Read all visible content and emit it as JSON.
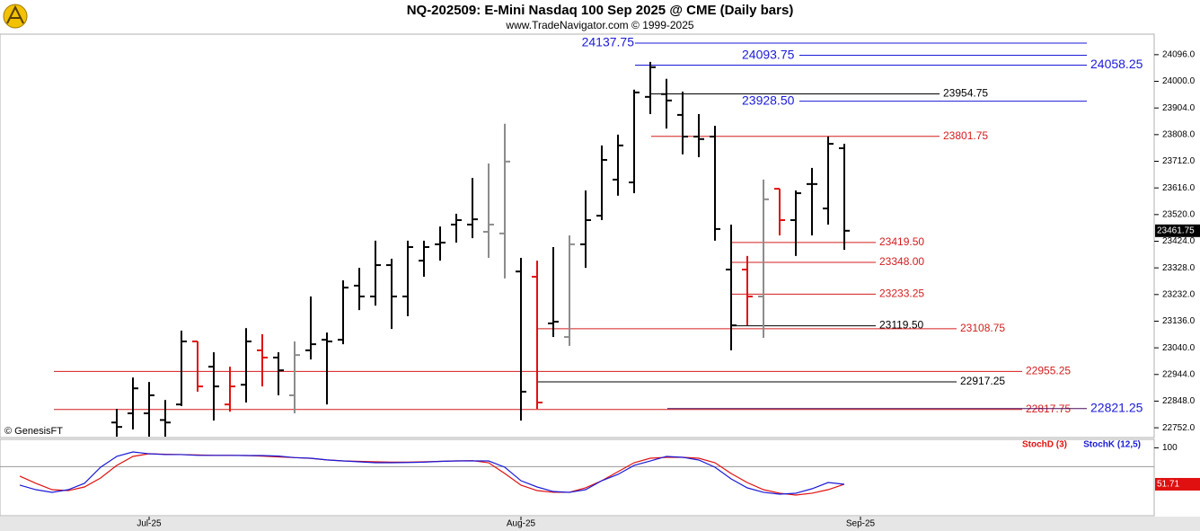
{
  "chart_data": {
    "type": "ohlc",
    "title": "NQ-202509:  E-Mini Nasdaq 100 Sep 2025 @ CME  (Daily bars)",
    "subtitle": "www.TradeNavigator.com © 1999-2025",
    "source": "© GenesisFT",
    "categories": [
      null,
      null,
      null,
      null,
      null,
      null,
      null,
      null,
      "Jul-25",
      null,
      null,
      null,
      null,
      null,
      null,
      null,
      null,
      null,
      null,
      null,
      null,
      null,
      null,
      null,
      null,
      null,
      null,
      null,
      null,
      null,
      null,
      "Aug-25",
      null,
      null,
      null,
      null,
      null,
      null,
      null,
      null,
      null,
      null,
      null,
      null,
      null,
      null,
      null,
      null,
      null,
      null,
      null,
      null,
      "Sep-25"
    ],
    "open": [
      null,
      null,
      null,
      null,
      null,
      null,
      22771,
      22804,
      22804,
      22780,
      22836,
      23063,
      22972,
      22836,
      22907,
      23031,
      23005,
      22869,
      23031,
      23069,
      23069,
      23264,
      23225,
      23338,
      23225,
      23354,
      23413,
      23484,
      23484,
      23458,
      23452,
      23315,
      23296,
      23128,
      23079,
      23413,
      23516,
      23646,
      23636,
      23944,
      23954,
      23879,
      23801,
      23801,
      23322,
      23322,
      23225,
      23613,
      23500,
      23630,
      23542,
      23759,
      null
    ],
    "high": [
      null,
      null,
      null,
      null,
      null,
      null,
      22820,
      22933,
      22917,
      22852,
      23102,
      23063,
      23024,
      22972,
      23111,
      23089,
      23024,
      23063,
      23225,
      23095,
      23283,
      23328,
      23426,
      23361,
      23426,
      23426,
      23477,
      23523,
      23652,
      23704,
      23847,
      23364,
      23354,
      23403,
      23445,
      23607,
      23769,
      23808,
      23970,
      24070,
      24009,
      23963,
      23882,
      23840,
      23484,
      23371,
      23646,
      23613,
      23607,
      23688,
      23801,
      23775,
      null
    ],
    "low": [
      null,
      null,
      null,
      null,
      null,
      null,
      22720,
      22746,
      22720,
      22720,
      22830,
      22882,
      22778,
      22810,
      22843,
      22901,
      22869,
      22804,
      22998,
      22836,
      23053,
      23176,
      23192,
      23108,
      23154,
      23296,
      23354,
      23419,
      23435,
      23364,
      23290,
      22778,
      22820,
      23079,
      23047,
      23328,
      23500,
      23588,
      23597,
      23882,
      23830,
      23737,
      23727,
      23426,
      23031,
      23121,
      23076,
      23445,
      23371,
      23445,
      23484,
      23393,
      null
    ],
    "close": [
      null,
      null,
      null,
      null,
      null,
      null,
      22755,
      22894,
      22869,
      22771,
      23063,
      22901,
      22901,
      22901,
      23063,
      23005,
      22959,
      23014,
      23053,
      23063,
      23257,
      23225,
      23338,
      23225,
      23403,
      23403,
      23419,
      23500,
      23503,
      23484,
      23711,
      22882,
      22843,
      23134,
      23413,
      23500,
      23717,
      23769,
      23960,
      24051,
      23931,
      23801,
      23792,
      23468,
      23121,
      23225,
      23575,
      23500,
      23597,
      23630,
      23775,
      23461.75,
      null
    ],
    "colors": [
      null,
      null,
      null,
      null,
      null,
      null,
      "#000000",
      "#000000",
      "#000000",
      "#000000",
      "#000000",
      "#e01010",
      "#000000",
      "#e01010",
      "#000000",
      "#e01010",
      "#000000",
      "#8c8c8c",
      "#000000",
      "#000000",
      "#000000",
      "#000000",
      "#000000",
      "#000000",
      "#000000",
      "#000000",
      "#000000",
      "#000000",
      "#000000",
      "#8c8c8c",
      "#8c8c8c",
      "#000000",
      "#e01010",
      "#000000",
      "#8c8c8c",
      "#000000",
      "#000000",
      "#000000",
      "#000000",
      "#000000",
      "#000000",
      "#000000",
      "#000000",
      "#000000",
      "#000000",
      "#e01010",
      "#8c8c8c",
      "#e01010",
      "#000000",
      "#000000",
      "#000000",
      "#000000",
      null
    ],
    "ylim": [
      22720,
      24170
    ],
    "yticks": [
      {
        "value": 24096,
        "label": "24096.0"
      },
      {
        "value": 24000,
        "label": "24000.0"
      },
      {
        "value": 23904,
        "label": "23904.0"
      },
      {
        "value": 23808,
        "label": "23808.0"
      },
      {
        "value": 23712,
        "label": "23712.0"
      },
      {
        "value": 23616,
        "label": "23616.0"
      },
      {
        "value": 23520,
        "label": "23520.0"
      },
      {
        "value": 23424,
        "label": "23424.0"
      },
      {
        "value": 23328,
        "label": "23328.0"
      },
      {
        "value": 23232,
        "label": "23232.0"
      },
      {
        "value": 23136,
        "label": "23136.0"
      },
      {
        "value": 23040,
        "label": "23040.0"
      },
      {
        "value": 22944,
        "label": "22944.0"
      },
      {
        "value": 22848,
        "label": "22848.0"
      },
      {
        "value": 22752,
        "label": "22752.0"
      }
    ],
    "levels": [
      {
        "value": 24137.75,
        "color": "#1a1ad8"
      },
      {
        "value": 24093.75,
        "color": "#1a1ad8"
      },
      {
        "value": 24058.25,
        "color": "#1a1ad8"
      },
      {
        "value": 23954.75,
        "color": "#000000"
      },
      {
        "value": 23928.5,
        "label": "23928.50",
        "color": "#1a1ad8"
      },
      {
        "value": 23801.75,
        "color": "#d41c1c"
      },
      {
        "value": 23419.5,
        "label": "23419.50",
        "color": "#d41c1c"
      },
      {
        "value": 23348,
        "label": "23348.00",
        "color": "#d41c1c"
      },
      {
        "value": 23233.25,
        "color": "#d41c1c"
      },
      {
        "value": 23119.5,
        "label": "23119.50",
        "color": "#000000"
      },
      {
        "value": 23108.75,
        "color": "#d41c1c"
      },
      {
        "value": 22955.25,
        "color": "#d41c1c"
      },
      {
        "value": 22917.25,
        "color": "#000000"
      },
      {
        "value": 22817.75,
        "color": "#d41c1c"
      },
      {
        "value": 22821.25,
        "color": "#1a1ad8"
      }
    ],
    "indicator": {
      "ylim": [
        10,
        110
      ],
      "yticks": [
        100
      ],
      "reference_lines": [
        75
      ],
      "series": [
        {
          "name": "StochD (3)",
          "color": "#e01010",
          "values": [
            62.4,
            52.9,
            44.5,
            43.3,
            48.1,
            60,
            76.7,
            88.6,
            92.1,
            91.5,
            91,
            90.5,
            90,
            90,
            89.8,
            89,
            88,
            87,
            86,
            84,
            82.6,
            82,
            81.4,
            81,
            81,
            81.4,
            82,
            82.6,
            83,
            80.2,
            65.9,
            50.5,
            43.3,
            41,
            41,
            47,
            56.4,
            68.3,
            80.2,
            86.2,
            87.4,
            87.4,
            86.2,
            80.2,
            65.9,
            53.9,
            44.5,
            39.8,
            37.4,
            39.8,
            44.5,
            51.71,
            null
          ]
        },
        {
          "name": "StochK (12,5)",
          "color": "#1a1ad8",
          "values": [
            50.5,
            44.5,
            41,
            44.5,
            52.9,
            74.3,
            88.6,
            94.5,
            92.1,
            91,
            91,
            90,
            90,
            90,
            89.8,
            89.8,
            89,
            87,
            86.2,
            84,
            82.6,
            81.4,
            80.2,
            80.2,
            80.5,
            81,
            82,
            82.6,
            82.6,
            82.6,
            74.3,
            56.4,
            48.1,
            42.1,
            41,
            44.5,
            56.4,
            64.8,
            76.7,
            82.6,
            88.6,
            87.4,
            83.8,
            74.3,
            58.8,
            46.9,
            41,
            38.6,
            39.8,
            45.7,
            54,
            51.7,
            null
          ]
        }
      ]
    }
  }
}
